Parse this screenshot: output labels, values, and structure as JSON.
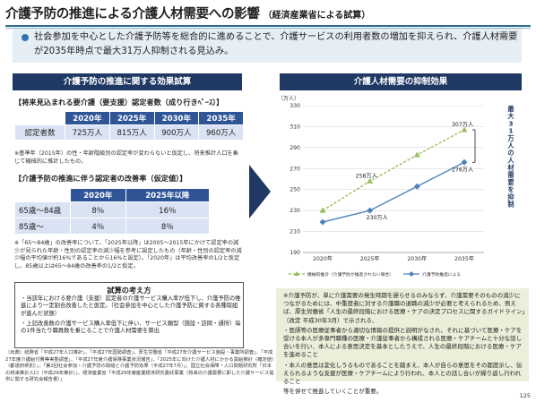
{
  "header": {
    "title": "介護予防の推進による介護人材需要への影響",
    "subtitle": "（経済産業省による試算）"
  },
  "summary": {
    "bullet": "社会参加を中心とした介護予防等を総合的に進めることで、介護サービスの利用者数の増加を抑えられ、介護人材需要が2035年時点で最大31万人抑制される見込み。"
  },
  "left_panel": {
    "title": "介護予防の推進に関する効果試算",
    "table1": {
      "heading": "【将来見込まれる要介護（要支援）認定者数（成り行きﾍﾞｰｽ）】",
      "columns": [
        "2020年",
        "2025年",
        "2030年",
        "2035年"
      ],
      "row_label": "認定者数",
      "values": [
        "725万人",
        "815万人",
        "900万人",
        "960万人"
      ],
      "note": "※基準年（2015年）の性・年齢階級別の認定率が変わらないと仮定し、将来推計人口を乗じて機械的に推計したもの。"
    },
    "table2": {
      "heading": "【介護予防の推進に伴う認定者の改善率（仮定値）】",
      "columns": [
        "2020年",
        "2025年以降"
      ],
      "rows": [
        {
          "label": "65歳～84歳",
          "values": [
            "8％",
            "16％"
          ]
        },
        {
          "label": "85歳～",
          "values": [
            "4％",
            "8％"
          ]
        }
      ],
      "note": "※「65～84歳」の改善率について、「2025年以降」は2005～2015年にかけて認定率の減少が見られた年齢・性別の認定率の減少幅を参考に設定したもの（年齢・性別の認定率の減少幅の平均値が約16%であることから16%と設定）。「2020年」は平均改善率の1/2と仮定し、85歳以上は65～84歳の改善率の1/2と仮定。"
    },
    "assumptions": {
      "title": "試算の考え方",
      "items": [
        "・当該年における要介護（支援）認定者の介護サービス購入率が低下し、介護予防の推進により一定割合改善したと仮定。（社会参加を中心とした介護予防に資する各種取組が進んだ状態）",
        "・上記改善数の介護サービス購入率低下に伴い、サービス類型（施設・訪問・通所）毎の1件当たり職員数を乗じることで介護人材需要を算出"
      ]
    }
  },
  "right_panel": {
    "title": "介護人材需要の抑制効果",
    "side_label": "最大31万人の人材需要を抑制"
  },
  "chart_data": {
    "type": "line",
    "categories": [
      "2020年",
      "2025年",
      "2030年",
      "2035年"
    ],
    "yunit": "（万人）",
    "ylim": [
      190,
      330
    ],
    "yticks": [
      190,
      210,
      230,
      250,
      270,
      290,
      310,
      330
    ],
    "series": [
      {
        "name": "機械的推計（介護予防が推進されない場合）",
        "values": [
          230,
          258,
          283,
          307
        ],
        "color": "#9bbb59",
        "style": "dashed"
      },
      {
        "name": "介護予防推進による",
        "values": [
          219,
          230,
          253,
          276
        ],
        "color": "#4f81bd",
        "style": "solid"
      }
    ],
    "annotations": [
      {
        "text": "307万人",
        "x": "2035年",
        "y": 307
      },
      {
        "text": "258万人",
        "x": "2025年",
        "y": 258
      },
      {
        "text": "230万人",
        "x": "2025年",
        "y": 230
      },
      {
        "text": "276万人",
        "x": "2035年",
        "y": 276
      }
    ],
    "legend": [
      "機械的推計（介護予防が推進されない場合）",
      "介護予防推進による"
    ],
    "legend_position": "bottom"
  },
  "right_box": {
    "items": [
      "※介護予防が、単に介護需要の発生時期を遅らせるのみならず、介護需要そのものの減少につながるためには、中重度者に対する介護職の退職の減少が必要と考えられるため、例えば、厚生労働省「人生の最終段階における医療・ケアの決定プロセスに関するガイドライン」（改定 平成30年3月）で示される、",
      "・医師等の医療従事者から適切な情報の提供と説明がなされ、それに基づいて医療・ケアを受ける本人が多専門職種の医療・介護従事者から構成される医療・ケアチームと十分な話し合いを行い、本人による意思決定を基本としたうえで、人生の最終段階における医療・ケアを進めること",
      "・本人の意思は変化しうるものであることを踏まえ、本人が自らの意思をその都度示し、伝えられるような支援が医療・ケアチームにより行われ、本人との話し合いが繰り返し行われること",
      "等を併せて推進していくことが重要。"
    ]
  },
  "footer": {
    "source": "（出典）総務省「平成27年人口推計」、「平成27年国勢調査」、厚生労働省「平成27年介護サービス施設・事業所調査」、「平成27年度介護給付費等実態調査」、「平成27年度介護保険事業状況報告」、「2025年に向けた介護人材にかかる需給推計（確定値）（都道府県別）」、「第2回社会参加・介護予防の取組と介護予防効果（平成27年7月）」、国立社会保障・人口問題研究所「日本の将来推計人口（平成29年推計）」、経済産業省「平成29年度産業経済研究委託事業（将来の介護需要に即した介護サービス提供に関する研究会報告書）」",
    "page": "125"
  }
}
